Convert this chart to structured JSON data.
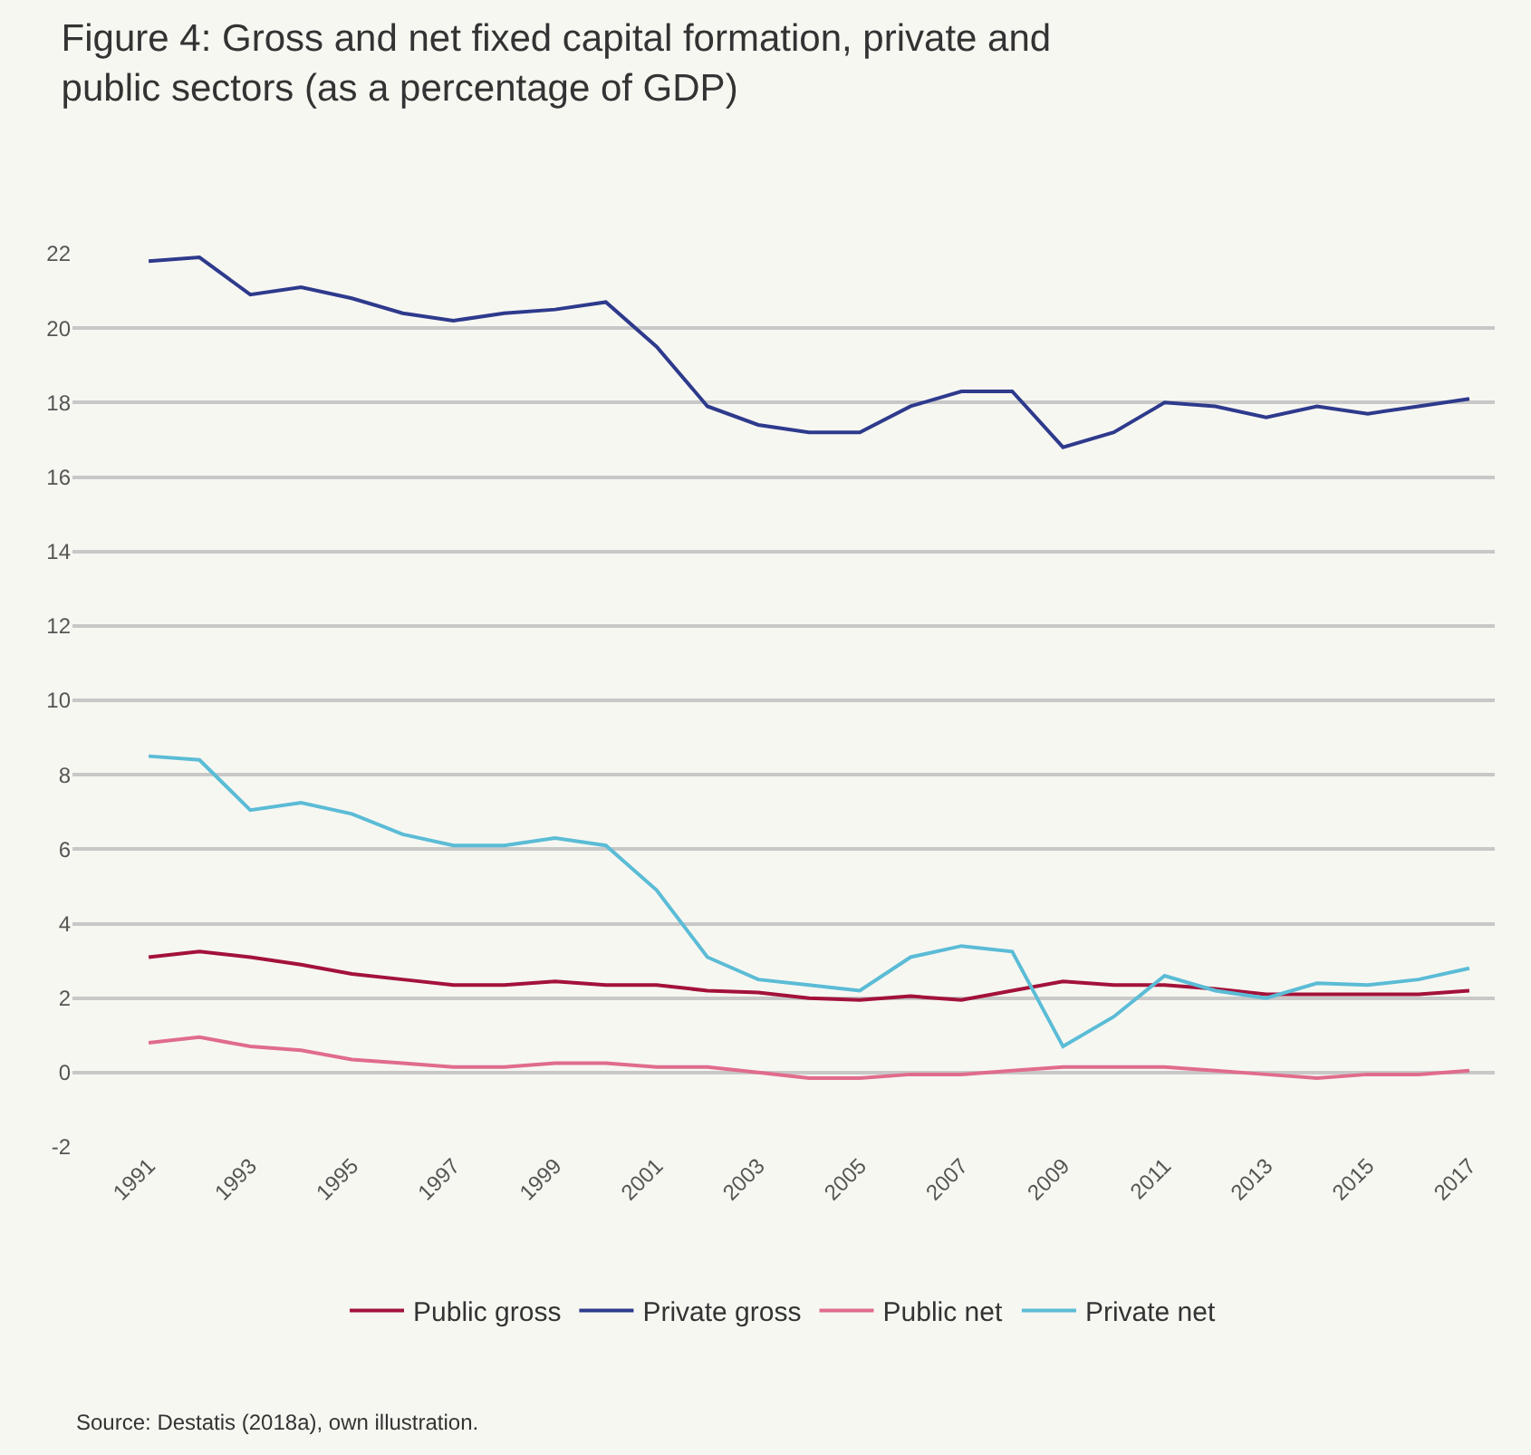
{
  "chart_data": {
    "type": "line",
    "title": "Figure 4: Gross and net fixed capital formation, private and public sectors (as a percentage of GDP)",
    "x": [
      1991,
      1992,
      1993,
      1994,
      1995,
      1996,
      1997,
      1998,
      1999,
      2000,
      2001,
      2002,
      2003,
      2004,
      2005,
      2006,
      2007,
      2008,
      2009,
      2010,
      2011,
      2012,
      2013,
      2014,
      2015,
      2016,
      2017
    ],
    "series": [
      {
        "name": "Public gross",
        "color": "#a3123a",
        "values": [
          3.1,
          3.25,
          3.1,
          2.9,
          2.65,
          2.5,
          2.35,
          2.35,
          2.45,
          2.35,
          2.35,
          2.2,
          2.15,
          2.0,
          1.95,
          2.05,
          1.95,
          2.2,
          2.45,
          2.35,
          2.35,
          2.25,
          2.1,
          2.1,
          2.1,
          2.1,
          2.2
        ]
      },
      {
        "name": "Private gross",
        "color": "#2e3a8c",
        "values": [
          21.8,
          21.9,
          20.9,
          21.1,
          20.8,
          20.4,
          20.2,
          20.4,
          20.5,
          20.7,
          19.5,
          17.9,
          17.4,
          17.2,
          17.2,
          17.9,
          18.3,
          18.3,
          16.8,
          17.2,
          18.0,
          17.9,
          17.6,
          17.9,
          17.7,
          17.9,
          18.1
        ]
      },
      {
        "name": "Public net",
        "color": "#e06c8c",
        "values": [
          0.8,
          0.95,
          0.7,
          0.6,
          0.35,
          0.25,
          0.15,
          0.15,
          0.25,
          0.25,
          0.15,
          0.15,
          0.0,
          -0.15,
          -0.15,
          -0.05,
          -0.05,
          0.05,
          0.15,
          0.15,
          0.15,
          0.05,
          -0.05,
          -0.15,
          -0.05,
          -0.05,
          0.05
        ]
      },
      {
        "name": "Private net",
        "color": "#5bbcd6",
        "values": [
          8.5,
          8.4,
          7.05,
          7.25,
          6.95,
          6.4,
          6.1,
          6.1,
          6.3,
          6.1,
          4.9,
          3.1,
          2.5,
          2.35,
          2.2,
          3.1,
          3.4,
          3.25,
          0.7,
          1.5,
          2.6,
          2.2,
          2.0,
          2.4,
          2.35,
          2.5,
          2.8
        ]
      }
    ],
    "xlim": [
      1989.5,
      2017.5
    ],
    "xticks": [
      1991,
      1993,
      1995,
      1997,
      1999,
      2001,
      2003,
      2005,
      2007,
      2009,
      2011,
      2013,
      2015,
      2017
    ],
    "ylim": [
      -2,
      22
    ],
    "yticks": [
      -2,
      0,
      2,
      4,
      6,
      8,
      10,
      12,
      14,
      16,
      18,
      20,
      22
    ],
    "grid": "y",
    "legend": "bottom",
    "marker": "none",
    "line_style": "solid",
    "annotations": [
      "Source: Destatis (2018a), own illustration."
    ]
  }
}
